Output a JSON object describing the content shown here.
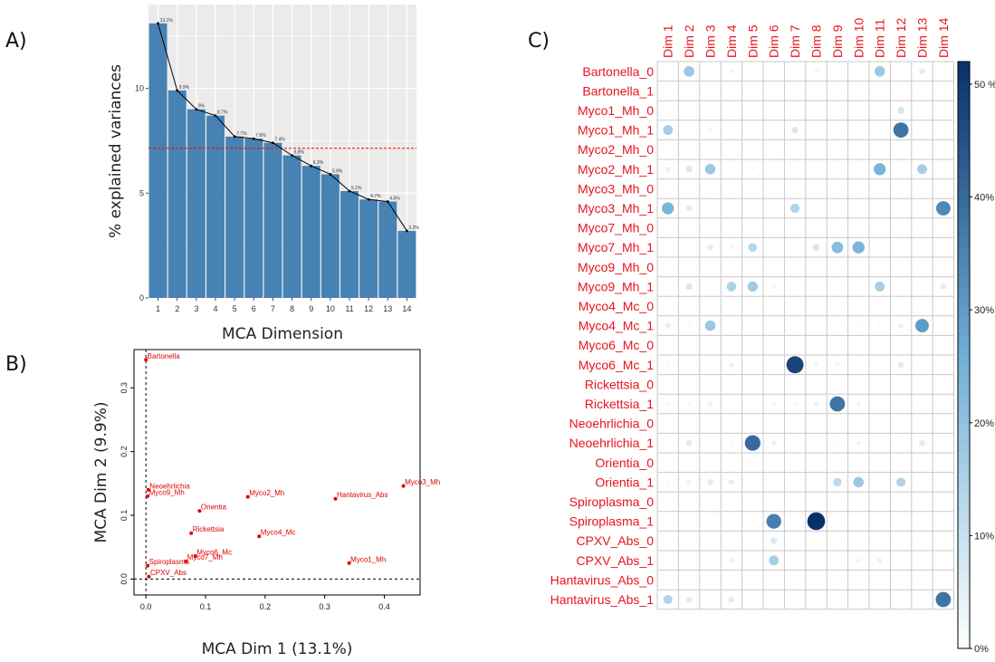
{
  "panels": {
    "a_label": "A)",
    "b_label": "B)",
    "c_label": "C)"
  },
  "chart_data": [
    {
      "type": "bar",
      "xlabel": "MCA Dimension",
      "ylabel": "% explained variances",
      "categories": [
        "1",
        "2",
        "3",
        "4",
        "5",
        "6",
        "7",
        "8",
        "9",
        "10",
        "11",
        "12",
        "13",
        "14"
      ],
      "values": [
        13.1,
        9.9,
        9.0,
        8.7,
        7.7,
        7.6,
        7.4,
        6.8,
        6.3,
        5.9,
        5.1,
        4.7,
        4.6,
        3.2
      ],
      "value_labels": [
        "13.1%",
        "9.9%",
        "9%",
        "8.7%",
        "7.7%",
        "7.6%",
        "7.4%",
        "6.8%",
        "6.3%",
        "5.9%",
        "5.1%",
        "4.7%",
        "4.6%",
        "3.2%"
      ],
      "ylim": [
        0,
        14
      ],
      "yticks": [
        0,
        5,
        10
      ],
      "ytick_labels": [
        "0",
        "5",
        "10"
      ],
      "reference_line": 7.14,
      "bar_color": "#4682b4",
      "line_color": "#000000",
      "reference_color": "#ff0000",
      "background": "#ebebeb",
      "grid": true
    },
    {
      "type": "scatter",
      "xlabel": "MCA Dim 1 (13.1%)",
      "ylabel": "MCA Dim 2 (9.9%)",
      "xlim": [
        -0.02,
        0.46
      ],
      "ylim": [
        -0.025,
        0.36
      ],
      "xticks": [
        0,
        0.1,
        0.2,
        0.3,
        0.4
      ],
      "xtick_labels": [
        "0.0",
        "0.1",
        "0.2",
        "0.3",
        "0.4"
      ],
      "yticks": [
        0,
        0.1,
        0.2,
        0.3
      ],
      "ytick_labels": [
        "0.0",
        "0.1",
        "0.2",
        "0.3"
      ],
      "point_color": "#e00000",
      "points": [
        {
          "label": "Bartonella",
          "x": 0.0,
          "y": 0.344
        },
        {
          "label": "Myco3_Mh",
          "x": 0.432,
          "y": 0.146
        },
        {
          "label": "Hantavirus_Abs",
          "x": 0.318,
          "y": 0.126
        },
        {
          "label": "Neoehrlichia",
          "x": 0.004,
          "y": 0.14
        },
        {
          "label": "Myco9_Mh",
          "x": 0.003,
          "y": 0.13
        },
        {
          "label": "Myco2_Mh",
          "x": 0.171,
          "y": 0.129
        },
        {
          "label": "Orientia",
          "x": 0.09,
          "y": 0.107
        },
        {
          "label": "Rickettsia",
          "x": 0.076,
          "y": 0.072
        },
        {
          "label": "Myco4_Mc",
          "x": 0.19,
          "y": 0.067
        },
        {
          "label": "Myco6_Mc",
          "x": 0.083,
          "y": 0.036
        },
        {
          "label": "Myco7_Mh",
          "x": 0.067,
          "y": 0.028
        },
        {
          "label": "Myco1_Mh",
          "x": 0.341,
          "y": 0.025
        },
        {
          "label": "Spiroplasma",
          "x": 0.003,
          "y": 0.021
        },
        {
          "label": "CPXV_Abs",
          "x": 0.005,
          "y": 0.004
        }
      ]
    },
    {
      "type": "heatmap",
      "columns": [
        "Dim 1",
        "Dim 2",
        "Dim 3",
        "Dim 4",
        "Dim 5",
        "Dim 6",
        "Dim 7",
        "Dim 8",
        "Dim 9",
        "Dim 10",
        "Dim 11",
        "Dim 12",
        "Dim 13",
        "Dim 14"
      ],
      "rows": [
        "Bartonella_0",
        "Bartonella_1",
        "Myco1_Mh_0",
        "Myco1_Mh_1",
        "Myco2_Mh_0",
        "Myco2_Mh_1",
        "Myco3_Mh_0",
        "Myco3_Mh_1",
        "Myco7_Mh_0",
        "Myco7_Mh_1",
        "Myco9_Mh_0",
        "Myco9_Mh_1",
        "Myco4_Mc_0",
        "Myco4_Mc_1",
        "Myco6_Mc_0",
        "Myco6_Mc_1",
        "Rickettsia_0",
        "Rickettsia_1",
        "Neoehrlichia_0",
        "Neoehrlichia_1",
        "Orientia_0",
        "Orientia_1",
        "Spiroplasma_0",
        "Spiroplasma_1",
        "CPXV_Abs_0",
        "CPXV_Abs_1",
        "Hantavirus_Abs_0",
        "Hantavirus_Abs_1"
      ],
      "values": [
        [
          0,
          18,
          1,
          3,
          1,
          1,
          1,
          3,
          0,
          0,
          18,
          0,
          6,
          0
        ],
        [
          0,
          1,
          0,
          0,
          0,
          0,
          0,
          0,
          0,
          0,
          1,
          0,
          0,
          0
        ],
        [
          1,
          0,
          0,
          0,
          0,
          0,
          0,
          0,
          0,
          0,
          0,
          8,
          0,
          0
        ],
        [
          16,
          1,
          3,
          1,
          0,
          0,
          7,
          0,
          0,
          0,
          2,
          38,
          0,
          0
        ],
        [
          0,
          0,
          0,
          0,
          0,
          0,
          0,
          0,
          0,
          0,
          0,
          0,
          0,
          0
        ],
        [
          4,
          7,
          18,
          0,
          2,
          0,
          0,
          0,
          1,
          1,
          24,
          0,
          16,
          0
        ],
        [
          0,
          0,
          0,
          0,
          0,
          0,
          0,
          0,
          0,
          0,
          0,
          0,
          0,
          1
        ],
        [
          24,
          6,
          0,
          0,
          0,
          0,
          14,
          0,
          0,
          0,
          0,
          1,
          0,
          34
        ],
        [
          0,
          0,
          0,
          0,
          0,
          0,
          0,
          0,
          0,
          0,
          0,
          0,
          0,
          0
        ],
        [
          1,
          1,
          6,
          3,
          13,
          0,
          0,
          8,
          22,
          24,
          0,
          0,
          1,
          0
        ],
        [
          0,
          0,
          0,
          0,
          0,
          0,
          0,
          0,
          0,
          0,
          0,
          0,
          0,
          0
        ],
        [
          0,
          7,
          1,
          15,
          17,
          3,
          0,
          0,
          0,
          0,
          16,
          0,
          1,
          6
        ],
        [
          0,
          0,
          0,
          0,
          0,
          0,
          0,
          0,
          0,
          0,
          0,
          0,
          0,
          0
        ],
        [
          5,
          2,
          18,
          1,
          0,
          0,
          0,
          0,
          0,
          2,
          2,
          4,
          30,
          0
        ],
        [
          0,
          0,
          0,
          0,
          0,
          0,
          0,
          0,
          0,
          0,
          0,
          0,
          0,
          0
        ],
        [
          2,
          1,
          0,
          4,
          0,
          0,
          48,
          3,
          3,
          1,
          1,
          6,
          1,
          0
        ],
        [
          0,
          0,
          0,
          0,
          0,
          0,
          0,
          0,
          0,
          0,
          0,
          0,
          0,
          0
        ],
        [
          2,
          2,
          4,
          1,
          0,
          2,
          2,
          4,
          38,
          3,
          0,
          0,
          0,
          0
        ],
        [
          0,
          0,
          0,
          0,
          0,
          0,
          0,
          0,
          0,
          0,
          0,
          0,
          0,
          0
        ],
        [
          0,
          6,
          0,
          2,
          40,
          4,
          0,
          0,
          2,
          3,
          0,
          0,
          6,
          1
        ],
        [
          0,
          0,
          0,
          0,
          0,
          0,
          0,
          0,
          0,
          0,
          0,
          0,
          0,
          0
        ],
        [
          2,
          4,
          6,
          5,
          0,
          0,
          0,
          0,
          12,
          18,
          0,
          14,
          0,
          0
        ],
        [
          0,
          0,
          0,
          0,
          0,
          0,
          0,
          0,
          0,
          0,
          0,
          0,
          0,
          0
        ],
        [
          0,
          0,
          0,
          0,
          2,
          36,
          0,
          52,
          0,
          1,
          0,
          0,
          0,
          0
        ],
        [
          0,
          0,
          1,
          1,
          0,
          7,
          0,
          0,
          0,
          1,
          2,
          0,
          0,
          0
        ],
        [
          0,
          0,
          2,
          4,
          0,
          16,
          0,
          2,
          0,
          3,
          4,
          0,
          1,
          0
        ],
        [
          0,
          0,
          0,
          0,
          0,
          0,
          0,
          0,
          0,
          0,
          0,
          0,
          0,
          0
        ],
        [
          14,
          6,
          1,
          6,
          1,
          2,
          0,
          0,
          0,
          0,
          1,
          0,
          2,
          38
        ]
      ],
      "vmax": 52,
      "colorbar_ticks": [
        0,
        10,
        20,
        30,
        40,
        50
      ],
      "colorbar_labels": [
        "0%",
        "10%",
        "20%",
        "30%",
        "40%",
        "50 %"
      ],
      "label_color": "#e8141e",
      "color_low": "#ffffff",
      "color_mid": "#6fafd6",
      "color_high": "#08306b"
    }
  ]
}
